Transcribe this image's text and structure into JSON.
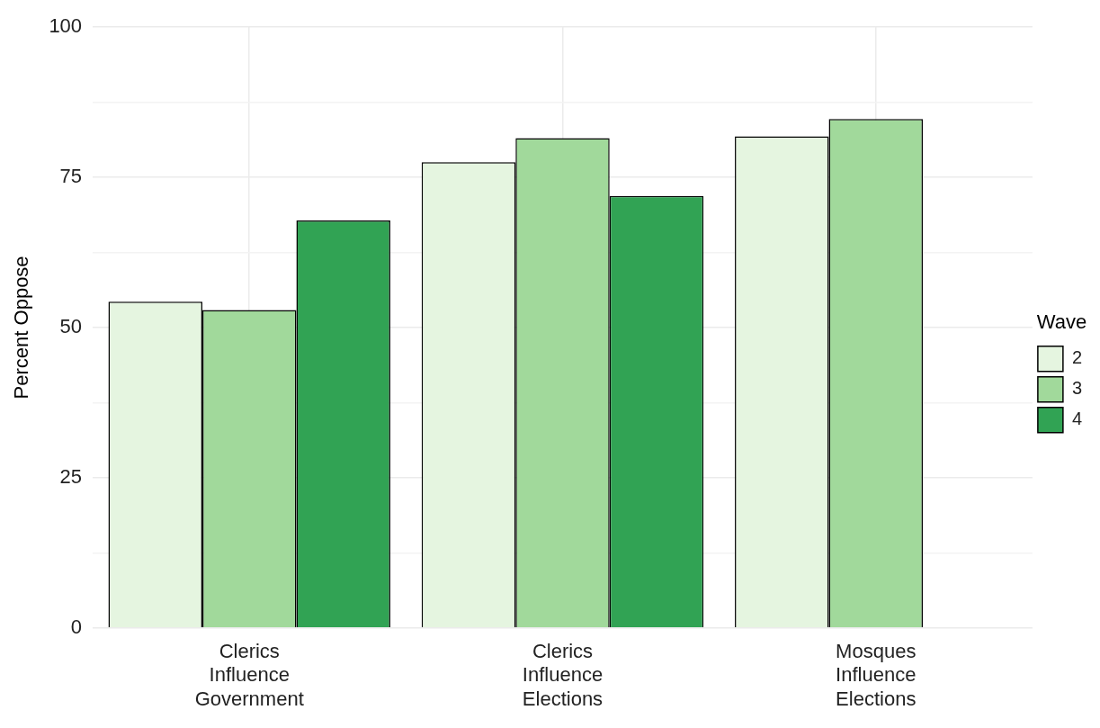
{
  "chart_data": {
    "type": "bar",
    "ylabel": "Percent Oppose",
    "legend_title": "Wave",
    "categories": [
      "Clerics Influence Government",
      "Clerics Influence Elections",
      "Mosques Influence Elections"
    ],
    "series": [
      {
        "name": "2",
        "color": "#e5f5e0",
        "values": [
          54.3,
          77.5,
          81.8
        ]
      },
      {
        "name": "3",
        "color": "#a1d99b",
        "values": [
          52.9,
          81.5,
          84.7
        ]
      },
      {
        "name": "4",
        "color": "#31a354",
        "values": [
          67.8,
          71.9,
          null
        ]
      }
    ],
    "ylim": [
      0,
      100
    ],
    "yticks": [
      0,
      {
        "value": 12.5,
        "label": null
      },
      25,
      {
        "value": 37.5,
        "label": null
      },
      50,
      {
        "value": 62.5,
        "label": null
      },
      75,
      {
        "value": 87.5,
        "label": null
      },
      100
    ],
    "grid": true,
    "legend": "right"
  }
}
